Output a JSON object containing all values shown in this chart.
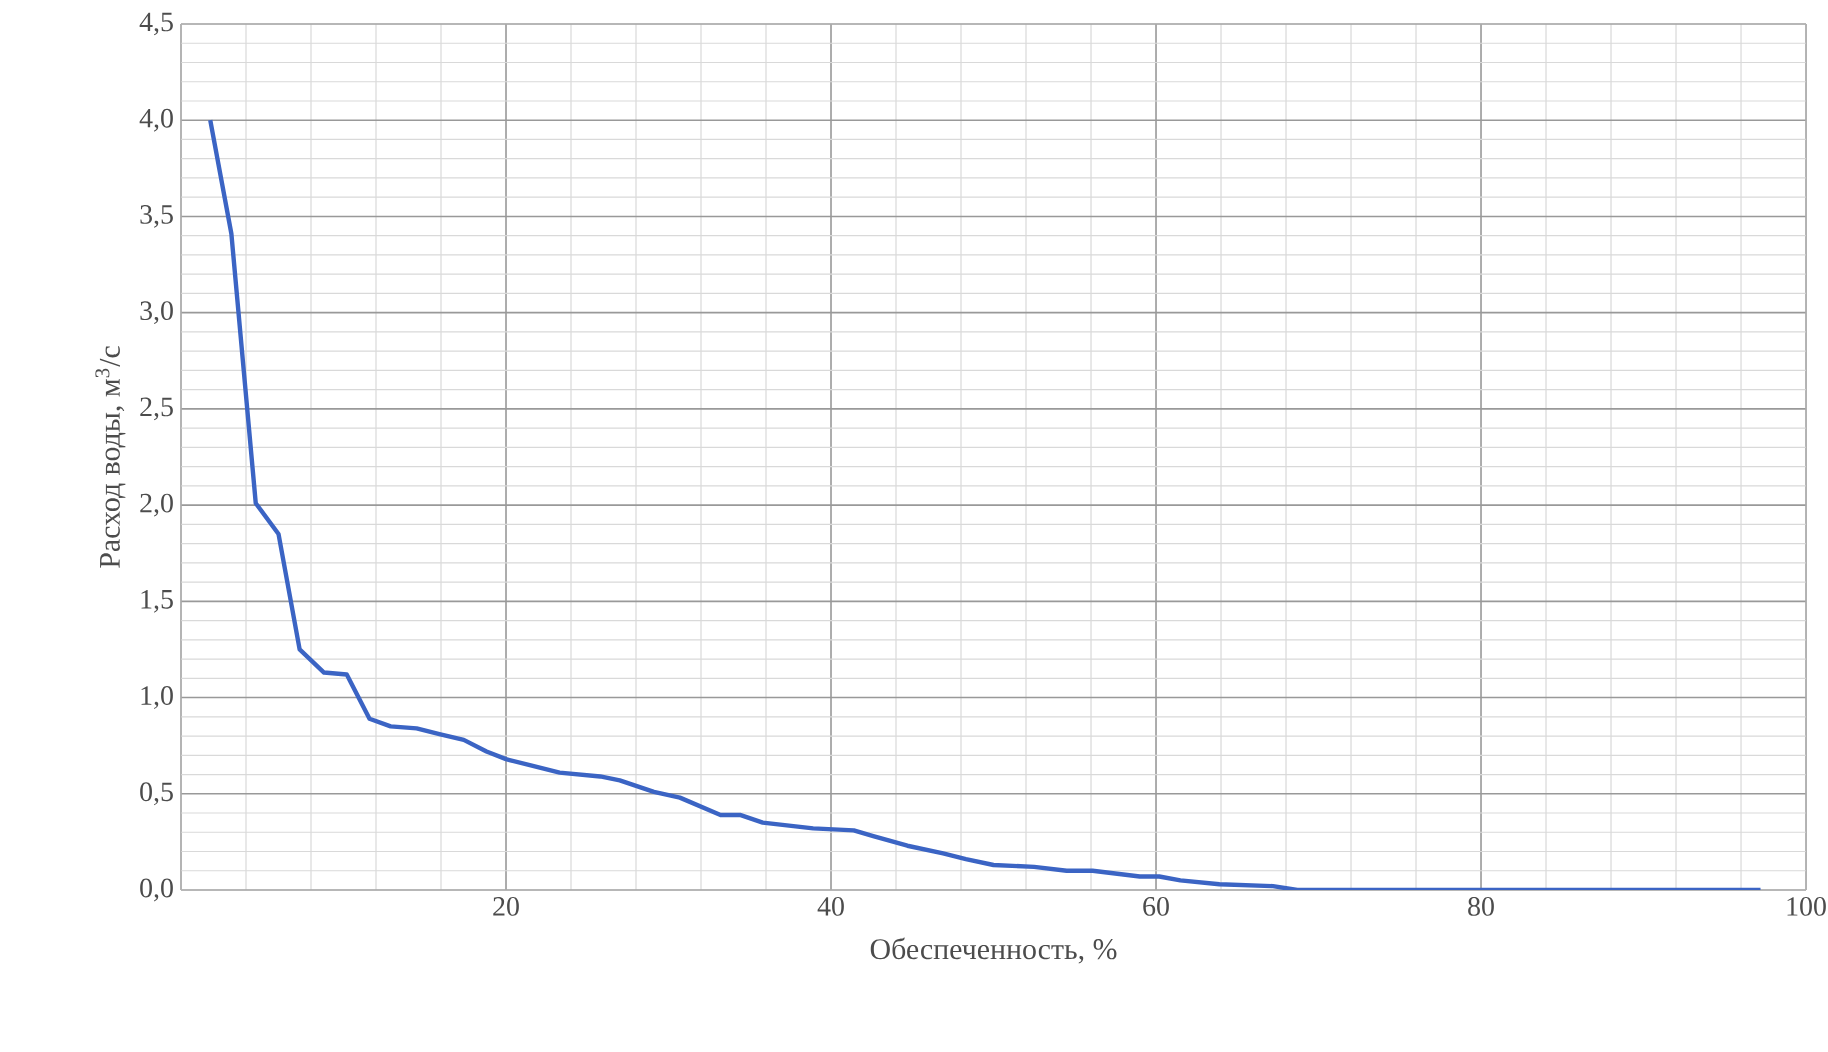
{
  "chart_data": {
    "type": "line",
    "xlabel": "Обеспеченность, %",
    "ylabel": "Расход воды, м$^{3}$/с",
    "xlim": [
      0,
      100
    ],
    "ylim": [
      0,
      4.5
    ],
    "xticks": [
      {
        "value": 0,
        "label": null
      },
      20,
      40,
      60,
      80,
      100
    ],
    "yticks": [
      {
        "value": 0,
        "label": "0,0"
      },
      {
        "value": 0.5,
        "label": "0,5"
      },
      {
        "value": 1,
        "label": "1,0"
      },
      {
        "value": 1.5,
        "label": "1,5"
      },
      {
        "value": 2,
        "label": "2,0"
      },
      {
        "value": 2.5,
        "label": "2,5"
      },
      {
        "value": 3,
        "label": "3,0"
      },
      {
        "value": 3.5,
        "label": "3,5"
      },
      {
        "value": 4,
        "label": "4,0"
      },
      {
        "value": 4.5,
        "label": "4,5"
      }
    ],
    "grid": true,
    "marker": "none",
    "line_style": "solid",
    "series": [
      {
        "color": "#3b64c4",
        "x": [
          1.8,
          3.1,
          4.6,
          6.0,
          7.3,
          8.8,
          10.2,
          11.6,
          12.9,
          14.5,
          15.9,
          17.4,
          18.8,
          20.0,
          23.3,
          25.8,
          27.0,
          29.1,
          30.7,
          33.2,
          34.4,
          35.8,
          38.9,
          41.4,
          42.6,
          44.7,
          46.9,
          48.3,
          50.0,
          52.5,
          54.5,
          56.1,
          59.0,
          60.2,
          61.5,
          63.9,
          67.2,
          68.7,
          97.2
        ],
        "values": [
          4.0,
          3.41,
          2.01,
          1.85,
          1.25,
          1.13,
          1.12,
          0.89,
          0.85,
          0.84,
          0.81,
          0.78,
          0.72,
          0.68,
          0.61,
          0.59,
          0.57,
          0.51,
          0.48,
          0.39,
          0.39,
          0.35,
          0.32,
          0.31,
          0.28,
          0.23,
          0.19,
          0.16,
          0.13,
          0.12,
          0.1,
          0.1,
          0.07,
          0.07,
          0.05,
          0.03,
          0.02,
          0.0,
          0.0
        ]
      }
    ]
  }
}
